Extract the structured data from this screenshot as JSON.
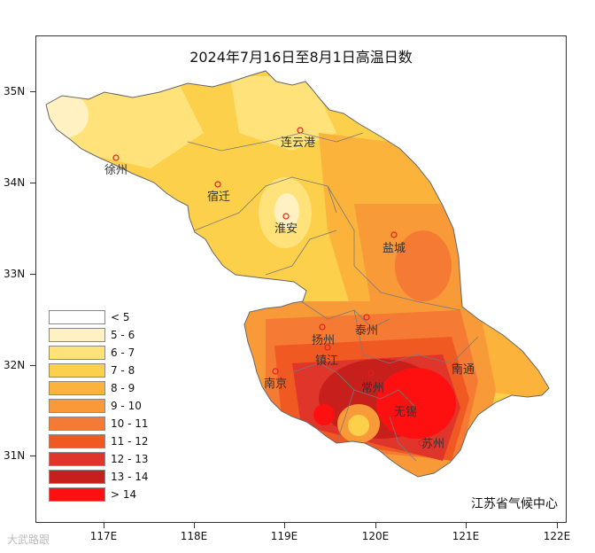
{
  "title": "2024年7月16日至8月1日高温日数",
  "latitude_labels": [
    "35N",
    "34N",
    "33N",
    "32N",
    "31N"
  ],
  "longitude_labels": [
    "117E",
    "118E",
    "119E",
    "120E",
    "121E",
    "122E"
  ],
  "legend": [
    {
      "label": "< 5",
      "color": "#ffffff"
    },
    {
      "label": "5 - 6",
      "color": "#fff1c2"
    },
    {
      "label": "6 - 7",
      "color": "#ffe27a"
    },
    {
      "label": "7 - 8",
      "color": "#fcd04a"
    },
    {
      "label": "8 - 9",
      "color": "#fbb33c"
    },
    {
      "label": "9 - 10",
      "color": "#f99a38"
    },
    {
      "label": "10 - 11",
      "color": "#f57a34"
    },
    {
      "label": "11 - 12",
      "color": "#f05a22"
    },
    {
      "label": "12 - 13",
      "color": "#e0352a"
    },
    {
      "label": "13 - 14",
      "color": "#c61f1c"
    },
    {
      "label": "> 14",
      "color": "#ff1010"
    }
  ],
  "cities": {
    "xuzhou": "徐州",
    "lianyungang": "连云港",
    "suqian": "宿迁",
    "huaian": "淮安",
    "yancheng": "盐城",
    "yangzhou": "扬州",
    "taizhou": "泰州",
    "zhenjiang": "镇江",
    "nanjing": "南京",
    "changzhou": "常州",
    "nantong": "南通",
    "wuxi": "无锡",
    "suzhou": "苏州"
  },
  "org": "江苏省气候中心",
  "watermark": "大武路跟",
  "marker_color": "#e02020"
}
